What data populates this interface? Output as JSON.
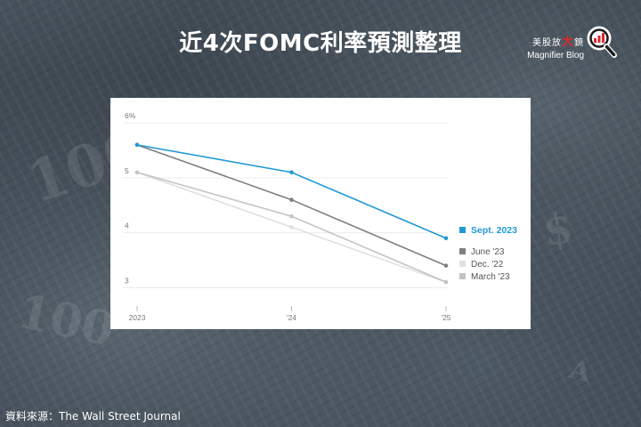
{
  "page": {
    "title": "近4次FOMC利率預測整理",
    "source": "資料來源：The Wall Street Journal"
  },
  "brand": {
    "name_part1": "美股放",
    "name_big": "大",
    "name_part2": "鏡",
    "subtitle": "Magnifier Blog",
    "icon": "magnifier-chart-icon",
    "accent_color": "#e0282e"
  },
  "chart_data": {
    "type": "line",
    "title": "",
    "xlabel": "",
    "ylabel": "",
    "x": [
      "2023",
      "'24",
      "'25"
    ],
    "y_ticks": [
      "6%",
      "5",
      "4",
      "3"
    ],
    "y_tick_values": [
      6,
      5,
      4,
      3
    ],
    "ylim": [
      2.6,
      6.1
    ],
    "grid": true,
    "legend_placement": "right, at line ends",
    "series": [
      {
        "name": "Sept. 2023",
        "values": [
          5.6,
          5.1,
          3.9
        ],
        "color": "#1f9ad6",
        "emphasis": true
      },
      {
        "name": "June '23",
        "values": [
          5.6,
          4.6,
          3.4
        ],
        "color": "#7f7f7f",
        "emphasis": false
      },
      {
        "name": "Dec. '22",
        "values": [
          5.1,
          4.1,
          3.1
        ],
        "color": "#e0e0e0",
        "emphasis": false
      },
      {
        "name": "March '23",
        "values": [
          5.1,
          4.3,
          3.1
        ],
        "color": "#c4c4c4",
        "emphasis": false
      }
    ]
  }
}
